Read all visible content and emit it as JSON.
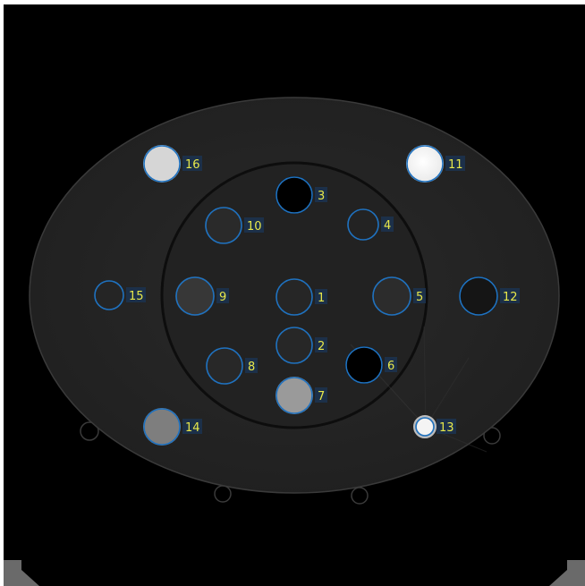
{
  "labels": [
    "1",
    "2",
    "3",
    "4",
    "5",
    "6",
    "7",
    "8",
    "9",
    "10",
    "11",
    "12",
    "13",
    "14",
    "15",
    "16"
  ],
  "colors": {
    "background": "#000000",
    "phantom_body": "#262626",
    "inner_disc": "#232323",
    "roi_outline": "#1f72c0",
    "label_text": "#e8e84a",
    "label_bg": "#1b3350"
  }
}
